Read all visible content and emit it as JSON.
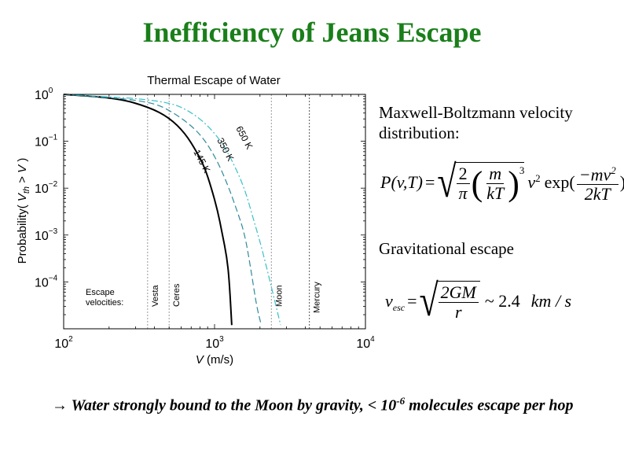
{
  "slide": {
    "title": "Inefficiency of Jeans Escape",
    "title_color": "#1a7f1a",
    "mb_label": "Maxwell-Boltzmann velocity distribution:",
    "formula1": {
      "lhs": "P(v,T)",
      "eq": "=",
      "two": "2",
      "pi": "π",
      "m": "m",
      "kT": "kT",
      "cube": "3",
      "v2": "v",
      "v2_exp": "2",
      "exp": "exp(",
      "num": "−mv",
      "num_exp": "2",
      "den": "2kT",
      "close": ")"
    },
    "grav_label": "Gravitational escape",
    "formula2": {
      "lhs": "v",
      "lhs_sub": "esc",
      "eq": "=",
      "num": "2GM",
      "den": "r",
      "approx": "~ 2.4",
      "units": "km / s"
    },
    "conclusion": {
      "arrow": "→",
      "text_a": " Water strongly bound to the Moon by gravity, < 10",
      "exponent": "-6",
      "text_b": " molecules escape per hop"
    }
  },
  "chart_data": {
    "type": "line",
    "title": "Thermal Escape of Water",
    "xlabel": "V (m/s)",
    "ylabel": "Probability( V_th > V )",
    "xscale": "log",
    "yscale": "log",
    "xlim": [
      100,
      10000
    ],
    "ylim": [
      1e-05,
      1
    ],
    "xticks": [
      "10^2",
      "10^3",
      "10^4"
    ],
    "yticks": [
      "10^0",
      "10^-1",
      "10^-2",
      "10^-3",
      "10^-4"
    ],
    "series": [
      {
        "name": "145 K",
        "style": "solid",
        "color": "#000000",
        "x": [
          100,
          229,
          370,
          500,
          637,
          765,
          862,
          947,
          1046,
          1123,
          1206,
          1251,
          1300
        ],
        "y": [
          1.0,
          0.83,
          0.53,
          0.32,
          0.15,
          0.058,
          0.027,
          0.0107,
          0.0034,
          0.0011,
          0.00034,
          0.00011,
          1.2e-05
        ]
      },
      {
        "name": "350 K",
        "style": "dashed",
        "color": "#2f8a9a",
        "x": [
          100,
          370,
          560,
          800,
          1018,
          1221,
          1405,
          1580,
          1735,
          1900,
          2040
        ],
        "y": [
          1.0,
          0.74,
          0.38,
          0.15,
          0.045,
          0.012,
          0.0034,
          0.0011,
          0.0002,
          3e-05,
          1.2e-05
        ]
      },
      {
        "name": "650 K",
        "style": "dashdot",
        "color": "#3cc0c8",
        "x": [
          100,
          470,
          750,
          1073,
          1350,
          1600,
          1800,
          2000,
          2200,
          2400,
          2740
        ],
        "y": [
          1.0,
          0.76,
          0.38,
          0.12,
          0.032,
          0.0088,
          0.0023,
          0.00073,
          0.00022,
          7e-05,
          1.2e-05
        ]
      }
    ],
    "reference_lines": [
      {
        "name": "Vesta",
        "x": 360
      },
      {
        "name": "Ceres",
        "x": 500
      },
      {
        "name": "Moon",
        "x": 2380
      },
      {
        "name": "Mercury",
        "x": 4250
      }
    ],
    "annotations": [
      "Escape velocities:",
      "145 K",
      "350 K",
      "650 K"
    ]
  }
}
